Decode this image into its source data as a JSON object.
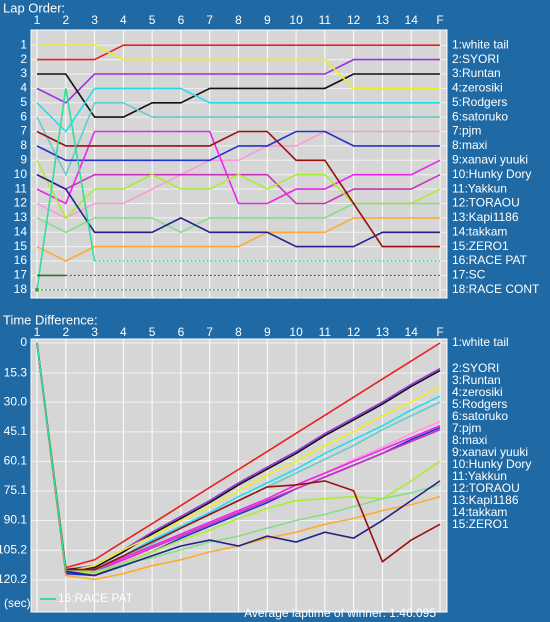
{
  "chart_data": [
    {
      "type": "line",
      "title": "Lap Order:",
      "categories": [
        "1",
        "2",
        "3",
        "4",
        "5",
        "6",
        "7",
        "8",
        "9",
        "10",
        "11",
        "12",
        "13",
        "14",
        "F"
      ],
      "ylim": [
        0.5,
        18.5
      ],
      "y_inverted": true,
      "grid": true,
      "dash_retired": true,
      "yticks": [
        1,
        2,
        3,
        4,
        5,
        6,
        7,
        8,
        9,
        10,
        11,
        12,
        13,
        14,
        15,
        16,
        17,
        18
      ],
      "series": [
        {
          "name": "1:white tail",
          "color": "#e82020",
          "values": [
            2,
            2,
            2,
            1,
            1,
            1,
            1,
            1,
            1,
            1,
            1,
            1,
            1,
            1,
            1
          ]
        },
        {
          "name": "2:SYORI",
          "color": "#9933dd",
          "values": [
            4,
            5,
            3,
            3,
            3,
            3,
            3,
            3,
            3,
            3,
            3,
            2,
            2,
            2,
            2
          ]
        },
        {
          "name": "3:Runtan",
          "color": "#111111",
          "values": [
            3,
            3,
            6,
            6,
            5,
            5,
            4,
            4,
            4,
            4,
            4,
            3,
            3,
            3,
            3
          ]
        },
        {
          "name": "4:zerosiki",
          "color": "#eeee22",
          "values": [
            1,
            1,
            1,
            2,
            2,
            2,
            2,
            2,
            2,
            2,
            2,
            4,
            4,
            4,
            4
          ]
        },
        {
          "name": "5:Rodgers",
          "color": "#22ddee",
          "values": [
            5,
            7,
            4,
            4,
            4,
            4,
            5,
            5,
            5,
            5,
            5,
            5,
            5,
            5,
            5
          ]
        },
        {
          "name": "6:satoruko",
          "color": "#66cccc",
          "values": [
            6,
            10,
            5,
            5,
            6,
            6,
            6,
            6,
            6,
            6,
            6,
            6,
            6,
            6,
            6
          ]
        },
        {
          "name": "7:pjm",
          "color": "#ff99dd",
          "values": [
            12,
            13,
            12,
            12,
            11,
            10,
            9,
            9,
            8,
            8,
            7,
            7,
            7,
            7,
            7
          ]
        },
        {
          "name": "8:maxi",
          "color": "#2233cc",
          "values": [
            8,
            9,
            9,
            9,
            9,
            9,
            9,
            8,
            8,
            7,
            7,
            8,
            8,
            8,
            8
          ]
        },
        {
          "name": "9:xanavi yuuki",
          "color": "#ee22ee",
          "values": [
            11,
            12,
            7,
            7,
            7,
            7,
            7,
            12,
            12,
            11,
            11,
            10,
            10,
            10,
            9
          ]
        },
        {
          "name": "10:Hunky Dory",
          "color": "#cc33bb",
          "values": [
            10,
            11,
            10,
            10,
            10,
            10,
            10,
            10,
            10,
            12,
            12,
            11,
            11,
            11,
            10
          ]
        },
        {
          "name": "11:Yakkun",
          "color": "#aaee33",
          "values": [
            9,
            13,
            11,
            11,
            10,
            11,
            11,
            10,
            11,
            10,
            10,
            12,
            12,
            12,
            11
          ]
        },
        {
          "name": "12:TORAOU",
          "color": "#88dd88",
          "values": [
            13,
            14,
            13,
            13,
            13,
            14,
            13,
            13,
            13,
            13,
            13,
            12,
            12,
            12,
            12
          ]
        },
        {
          "name": "13:Kapi1186",
          "color": "#ffaa33",
          "values": [
            15,
            16,
            15,
            15,
            15,
            15,
            15,
            15,
            14,
            14,
            14,
            13,
            13,
            13,
            13
          ]
        },
        {
          "name": "14:takkam",
          "color": "#222288",
          "values": [
            10,
            11,
            14,
            14,
            14,
            13,
            14,
            14,
            14,
            15,
            15,
            15,
            14,
            14,
            14
          ]
        },
        {
          "name": "15:ZERO1",
          "color": "#991111",
          "values": [
            7,
            8,
            8,
            8,
            8,
            8,
            8,
            7,
            7,
            9,
            9,
            12,
            15,
            15,
            15
          ]
        },
        {
          "name": "16:RACE PAT",
          "color": "#33dd99",
          "values": [
            18,
            4,
            16,
            null,
            null,
            null,
            null,
            null,
            null,
            null,
            null,
            null,
            null,
            null,
            null
          ]
        },
        {
          "name": "17:SC",
          "color": "#227722",
          "values": [
            17,
            17,
            null,
            null,
            null,
            null,
            null,
            null,
            null,
            null,
            null,
            null,
            null,
            null,
            null
          ]
        },
        {
          "name": "18:RACE CONT",
          "color": "#33aa33",
          "values": [
            18,
            null,
            null,
            null,
            null,
            null,
            null,
            null,
            null,
            null,
            null,
            null,
            null,
            null,
            null
          ]
        }
      ]
    },
    {
      "type": "line",
      "title": "Time Difference:",
      "y_label": "(sec)",
      "footer": "Average laptime of winner: 1:46.095",
      "categories": [
        "1",
        "2",
        "3",
        "4",
        "5",
        "6",
        "7",
        "8",
        "9",
        "10",
        "11",
        "12",
        "13",
        "14",
        "F"
      ],
      "ylim": [
        0,
        136
      ],
      "y_inverted": true,
      "grid": true,
      "legend": "lower left",
      "yticks": [
        0,
        15.3,
        {
          "value": 30,
          "label": "30.0"
        },
        45.1,
        60.1,
        75.1,
        90.1,
        105.2,
        120.2
      ],
      "series": [
        {
          "name": "1:white tail",
          "color": "#e82020",
          "values": [
            0,
            114,
            110,
            100.8,
            91.7,
            82.5,
            73.3,
            64.2,
            55,
            45.8,
            36.7,
            27.5,
            18.3,
            9.2,
            0
          ]
        },
        {
          "name": "2:SYORI",
          "color": "#9933dd",
          "values": [
            0,
            115,
            113,
            105,
            96,
            88,
            80,
            71,
            63,
            55,
            46,
            38,
            30,
            21,
            13
          ]
        },
        {
          "name": "3:Runtan",
          "color": "#111111",
          "values": [
            0,
            115,
            114,
            106,
            97,
            89,
            81,
            72,
            64,
            56,
            47,
            39,
            31,
            22,
            14
          ]
        },
        {
          "name": "4:zerosiki",
          "color": "#eeee22",
          "values": [
            0,
            116,
            113,
            105,
            98,
            90,
            83,
            75,
            67,
            60,
            52,
            45,
            37,
            30,
            22
          ]
        },
        {
          "name": "5:Rodgers",
          "color": "#22ddee",
          "values": [
            0,
            117,
            115,
            108,
            100,
            93,
            86,
            78,
            71,
            64,
            56,
            49,
            42,
            34,
            27
          ]
        },
        {
          "name": "6:satoruko",
          "color": "#66cccc",
          "values": [
            0,
            117,
            116,
            109,
            102,
            94,
            87,
            80,
            73,
            66,
            59,
            52,
            44,
            37,
            30
          ]
        },
        {
          "name": "7:pjm",
          "color": "#ff99dd",
          "values": [
            0,
            118,
            117,
            111,
            104,
            98,
            91,
            85,
            79,
            72,
            66,
            59,
            53,
            46,
            40
          ]
        },
        {
          "name": "8:maxi",
          "color": "#2233cc",
          "values": [
            0,
            117,
            118,
            112,
            106,
            99,
            93,
            87,
            81,
            74,
            68,
            62,
            56,
            49,
            43
          ]
        },
        {
          "name": "9:xanavi yuuki",
          "color": "#ee22ee",
          "values": [
            0,
            116,
            115,
            109,
            103,
            97,
            91,
            85,
            79,
            72,
            66,
            60,
            54,
            48,
            42
          ]
        },
        {
          "name": "10:Hunky Dory",
          "color": "#cc33bb",
          "values": [
            0,
            116,
            116,
            110,
            104,
            98,
            92,
            86,
            80,
            74,
            68,
            62,
            56,
            50,
            44
          ]
        },
        {
          "name": "11:Yakkun",
          "color": "#aaee33",
          "values": [
            0,
            115,
            117,
            112,
            106,
            100,
            95,
            89,
            84,
            80,
            79,
            78,
            79,
            70,
            60
          ]
        },
        {
          "name": "12:TORAOU",
          "color": "#88dd88",
          "values": [
            0,
            115,
            116,
            112,
            109,
            105,
            101,
            98,
            94,
            90,
            87,
            83,
            79,
            76,
            72
          ]
        },
        {
          "name": "13:Kapi1186",
          "color": "#ffaa33",
          "values": [
            0,
            118,
            120,
            117,
            113,
            110,
            106,
            103,
            99,
            96,
            92,
            89,
            85,
            82,
            78
          ]
        },
        {
          "name": "14:takkam",
          "color": "#222288",
          "values": [
            0,
            116,
            118,
            113,
            108,
            103,
            100,
            103,
            98,
            101,
            96,
            99,
            90,
            80,
            70
          ]
        },
        {
          "name": "15:ZERO1",
          "color": "#991111",
          "values": [
            0,
            115,
            115,
            108,
            101,
            94,
            87,
            80,
            73,
            72,
            70,
            75,
            111,
            100,
            92
          ]
        },
        {
          "name": "16:RACE PAT",
          "color": "#33dd99",
          "values": [
            0,
            116,
            null,
            null,
            null,
            null,
            null,
            null,
            null,
            null,
            null,
            null,
            null,
            null,
            null
          ]
        }
      ]
    }
  ]
}
